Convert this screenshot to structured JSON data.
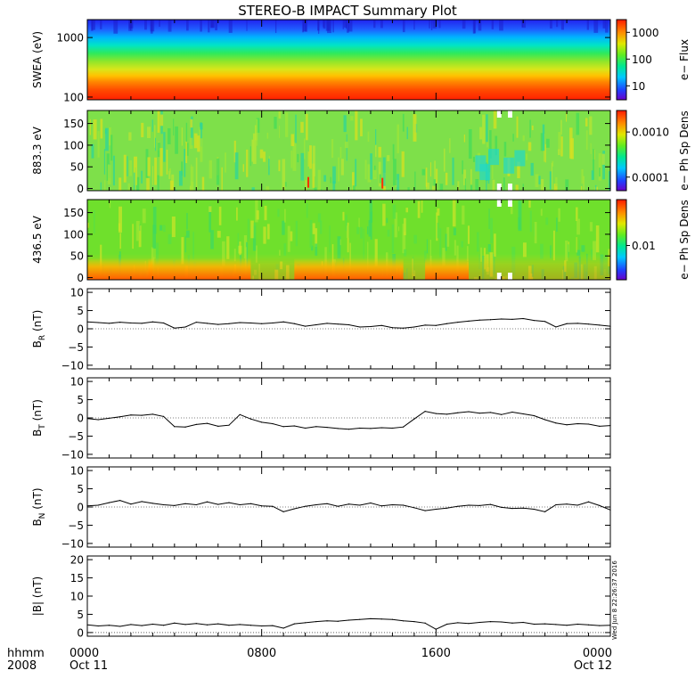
{
  "title": "STEREO-B IMPACT Summary Plot",
  "time_axis": {
    "row1_label": "hhmm",
    "row2_label": "2008",
    "range_hours": [
      0,
      24
    ],
    "ticks": [
      {
        "hour": 0,
        "hhmm": "0000",
        "date": "Oct 11"
      },
      {
        "hour": 8,
        "hhmm": "0800",
        "date": ""
      },
      {
        "hour": 16,
        "hhmm": "1600",
        "date": ""
      },
      {
        "hour": 24,
        "hhmm": "0000",
        "date": "Oct 12"
      }
    ]
  },
  "timestamp": "Wed Jun 8 22:26:37 2016",
  "chart_data": [
    {
      "type": "heatmap",
      "ylabel": "SWEA (eV)",
      "yscale": "log",
      "ylim": [
        90,
        2000
      ],
      "yticks": [
        "1000",
        "100"
      ],
      "ytick_values": [
        1000,
        100
      ],
      "colorbar": {
        "label": "e− Flux",
        "scale": "log",
        "ticks": [
          "1000",
          "100",
          "10"
        ],
        "tick_values": [
          1000,
          100,
          10
        ],
        "range": [
          3,
          3000
        ]
      },
      "color_by_level": [
        {
          "energy_eV": 1900,
          "color": "#2222ee"
        },
        {
          "energy_eV": 1400,
          "color": "#1f5dff"
        },
        {
          "energy_eV": 1100,
          "color": "#00b4ff"
        },
        {
          "energy_eV": 850,
          "color": "#00e4c6"
        },
        {
          "energy_eV": 650,
          "color": "#2eea5c"
        },
        {
          "energy_eV": 480,
          "color": "#8fe62a"
        },
        {
          "energy_eV": 340,
          "color": "#d9e61a"
        },
        {
          "energy_eV": 260,
          "color": "#ffc200"
        },
        {
          "energy_eV": 200,
          "color": "#ff8400"
        },
        {
          "energy_eV": 150,
          "color": "#ff4a00"
        },
        {
          "energy_eV": 110,
          "color": "#ff2400"
        }
      ]
    },
    {
      "type": "heatmap",
      "ylabel": "883.3 eV",
      "ylim": [
        -5,
        180
      ],
      "yticks": [
        "150",
        "100",
        "50",
        "0"
      ],
      "ytick_values": [
        150,
        100,
        50,
        0
      ],
      "colorbar": {
        "label": "e− Ph Sp Dens",
        "scale": "log",
        "ticks": [
          "0.0010",
          "0.0001"
        ],
        "tick_values": [
          0.001,
          0.0001
        ],
        "range": [
          5e-05,
          0.003
        ]
      },
      "dominant_color": "#7ee04a",
      "data_gap_hours": [
        [
          18.8,
          19.0
        ],
        [
          19.3,
          19.5
        ]
      ]
    },
    {
      "type": "heatmap",
      "ylabel": "436.5 eV",
      "ylim": [
        -5,
        180
      ],
      "yticks": [
        "150",
        "100",
        "50",
        "0"
      ],
      "ytick_values": [
        150,
        100,
        50,
        0
      ],
      "colorbar": {
        "label": "e− Ph Sp Dens",
        "scale": "log",
        "ticks": [
          "0.01"
        ],
        "tick_values": [
          0.01
        ],
        "range": [
          0.003,
          0.05
        ]
      },
      "dominant_color": "#6fe02c",
      "data_gap_hours": [
        [
          18.8,
          19.0
        ],
        [
          19.3,
          19.5
        ]
      ]
    },
    {
      "type": "line",
      "ylabel": "B_R (nT)",
      "ylabel_main": "B",
      "ylabel_sub": "R",
      "ylabel_unit": " (nT)",
      "ylim": [
        -11,
        11
      ],
      "yticks": [
        "10",
        "5",
        "0",
        "−5",
        "−10"
      ],
      "ytick_values": [
        10,
        5,
        0,
        -5,
        -10
      ],
      "x_hours": [
        0,
        0.5,
        1,
        1.5,
        2,
        2.5,
        3,
        3.5,
        4,
        4.5,
        5,
        5.5,
        6,
        6.5,
        7,
        7.5,
        8,
        8.5,
        9,
        9.5,
        10,
        10.5,
        11,
        11.5,
        12,
        12.5,
        13,
        13.5,
        14,
        14.5,
        15,
        15.5,
        16,
        16.5,
        17,
        17.5,
        18,
        18.5,
        19,
        19.5,
        20,
        20.5,
        21,
        21.5,
        22,
        22.5,
        23,
        23.5,
        24
      ],
      "values": [
        1.9,
        1.7,
        1.5,
        1.8,
        1.6,
        1.5,
        1.9,
        1.6,
        0.2,
        0.5,
        1.8,
        1.5,
        1.2,
        1.4,
        1.7,
        1.6,
        1.4,
        1.6,
        1.9,
        1.4,
        0.7,
        1.1,
        1.5,
        1.3,
        1.1,
        0.5,
        0.6,
        0.9,
        0.3,
        0.2,
        0.5,
        1.0,
        0.9,
        1.4,
        1.8,
        2.1,
        2.4,
        2.5,
        2.7,
        2.6,
        2.8,
        2.3,
        2.0,
        0.5,
        1.4,
        1.5,
        1.3,
        1.0,
        0.7
      ]
    },
    {
      "type": "line",
      "ylabel": "B_T (nT)",
      "ylabel_main": "B",
      "ylabel_sub": "T",
      "ylabel_unit": " (nT)",
      "ylim": [
        -11,
        11
      ],
      "yticks": [
        "10",
        "5",
        "0",
        "−5",
        "−10"
      ],
      "ytick_values": [
        10,
        5,
        0,
        -5,
        -10
      ],
      "x_hours": [
        0,
        0.5,
        1,
        1.5,
        2,
        2.5,
        3,
        3.5,
        4,
        4.5,
        5,
        5.5,
        6,
        6.5,
        7,
        7.5,
        8,
        8.5,
        9,
        9.5,
        10,
        10.5,
        11,
        11.5,
        12,
        12.5,
        13,
        13.5,
        14,
        14.5,
        15,
        15.5,
        16,
        16.5,
        17,
        17.5,
        18,
        18.5,
        19,
        19.5,
        20,
        20.5,
        21,
        21.5,
        22,
        22.5,
        23,
        23.5,
        24
      ],
      "values": [
        -0.2,
        -0.5,
        -0.1,
        0.3,
        0.8,
        0.7,
        1.0,
        0.4,
        -2.4,
        -2.5,
        -1.8,
        -1.5,
        -2.3,
        -2.0,
        0.9,
        -0.3,
        -1.2,
        -1.6,
        -2.4,
        -2.2,
        -2.8,
        -2.4,
        -2.6,
        -2.9,
        -3.1,
        -2.8,
        -2.9,
        -2.7,
        -2.8,
        -2.5,
        -0.3,
        1.8,
        1.2,
        1.0,
        1.4,
        1.7,
        1.3,
        1.5,
        0.9,
        1.6,
        1.1,
        0.6,
        -0.5,
        -1.4,
        -1.9,
        -1.6,
        -1.7,
        -2.3,
        -2.1
      ]
    },
    {
      "type": "line",
      "ylabel": "B_N (nT)",
      "ylabel_main": "B",
      "ylabel_sub": "N",
      "ylabel_unit": " (nT)",
      "ylim": [
        -11,
        11
      ],
      "yticks": [
        "10",
        "5",
        "0",
        "−5",
        "−10"
      ],
      "ytick_values": [
        10,
        5,
        0,
        -5,
        -10
      ],
      "x_hours": [
        0,
        0.5,
        1,
        1.5,
        2,
        2.5,
        3,
        3.5,
        4,
        4.5,
        5,
        5.5,
        6,
        6.5,
        7,
        7.5,
        8,
        8.5,
        9,
        9.5,
        10,
        10.5,
        11,
        11.5,
        12,
        12.5,
        13,
        13.5,
        14,
        14.5,
        15,
        15.5,
        16,
        16.5,
        17,
        17.5,
        18,
        18.5,
        19,
        19.5,
        20,
        20.5,
        21,
        21.5,
        22,
        22.5,
        23,
        23.5,
        24
      ],
      "values": [
        0.3,
        0.5,
        1.2,
        1.8,
        0.8,
        1.5,
        1.0,
        0.6,
        0.4,
        0.9,
        0.6,
        1.4,
        0.7,
        1.2,
        0.6,
        0.9,
        0.3,
        0.2,
        -1.3,
        -0.5,
        0.2,
        0.6,
        0.9,
        0.2,
        0.8,
        0.5,
        1.1,
        0.3,
        0.6,
        0.5,
        -0.2,
        -1.0,
        -0.6,
        -0.3,
        0.2,
        0.5,
        0.4,
        0.7,
        -0.1,
        -0.4,
        -0.3,
        -0.6,
        -1.3,
        0.6,
        0.8,
        0.5,
        1.4,
        0.4,
        -0.8
      ]
    },
    {
      "type": "line",
      "ylabel": "|B| (nT)",
      "ylabel_main": "|B|",
      "ylabel_sub": "",
      "ylabel_unit": " (nT)",
      "ylim": [
        -1,
        21
      ],
      "yticks": [
        "20",
        "15",
        "10",
        "5",
        "0"
      ],
      "ytick_values": [
        20,
        15,
        10,
        5,
        0
      ],
      "x_hours": [
        0,
        0.5,
        1,
        1.5,
        2,
        2.5,
        3,
        3.5,
        4,
        4.5,
        5,
        5.5,
        6,
        6.5,
        7,
        7.5,
        8,
        8.5,
        9,
        9.5,
        10,
        10.5,
        11,
        11.5,
        12,
        12.5,
        13,
        13.5,
        14,
        14.5,
        15,
        15.5,
        16,
        16.5,
        17,
        17.5,
        18,
        18.5,
        19,
        19.5,
        20,
        20.5,
        21,
        21.5,
        22,
        22.5,
        23,
        23.5,
        24
      ],
      "values": [
        2.1,
        1.8,
        2.0,
        1.7,
        2.2,
        1.9,
        2.3,
        2.0,
        2.6,
        2.2,
        2.5,
        2.1,
        2.4,
        2.0,
        2.2,
        2.0,
        1.8,
        1.9,
        1.2,
        2.4,
        2.7,
        3.0,
        3.2,
        3.1,
        3.4,
        3.6,
        3.8,
        3.7,
        3.6,
        3.2,
        3.0,
        2.6,
        0.9,
        2.3,
        2.7,
        2.5,
        2.8,
        3.0,
        2.9,
        2.6,
        2.8,
        2.3,
        2.4,
        2.2,
        2.0,
        2.3,
        2.1,
        1.9,
        2.0
      ]
    }
  ]
}
